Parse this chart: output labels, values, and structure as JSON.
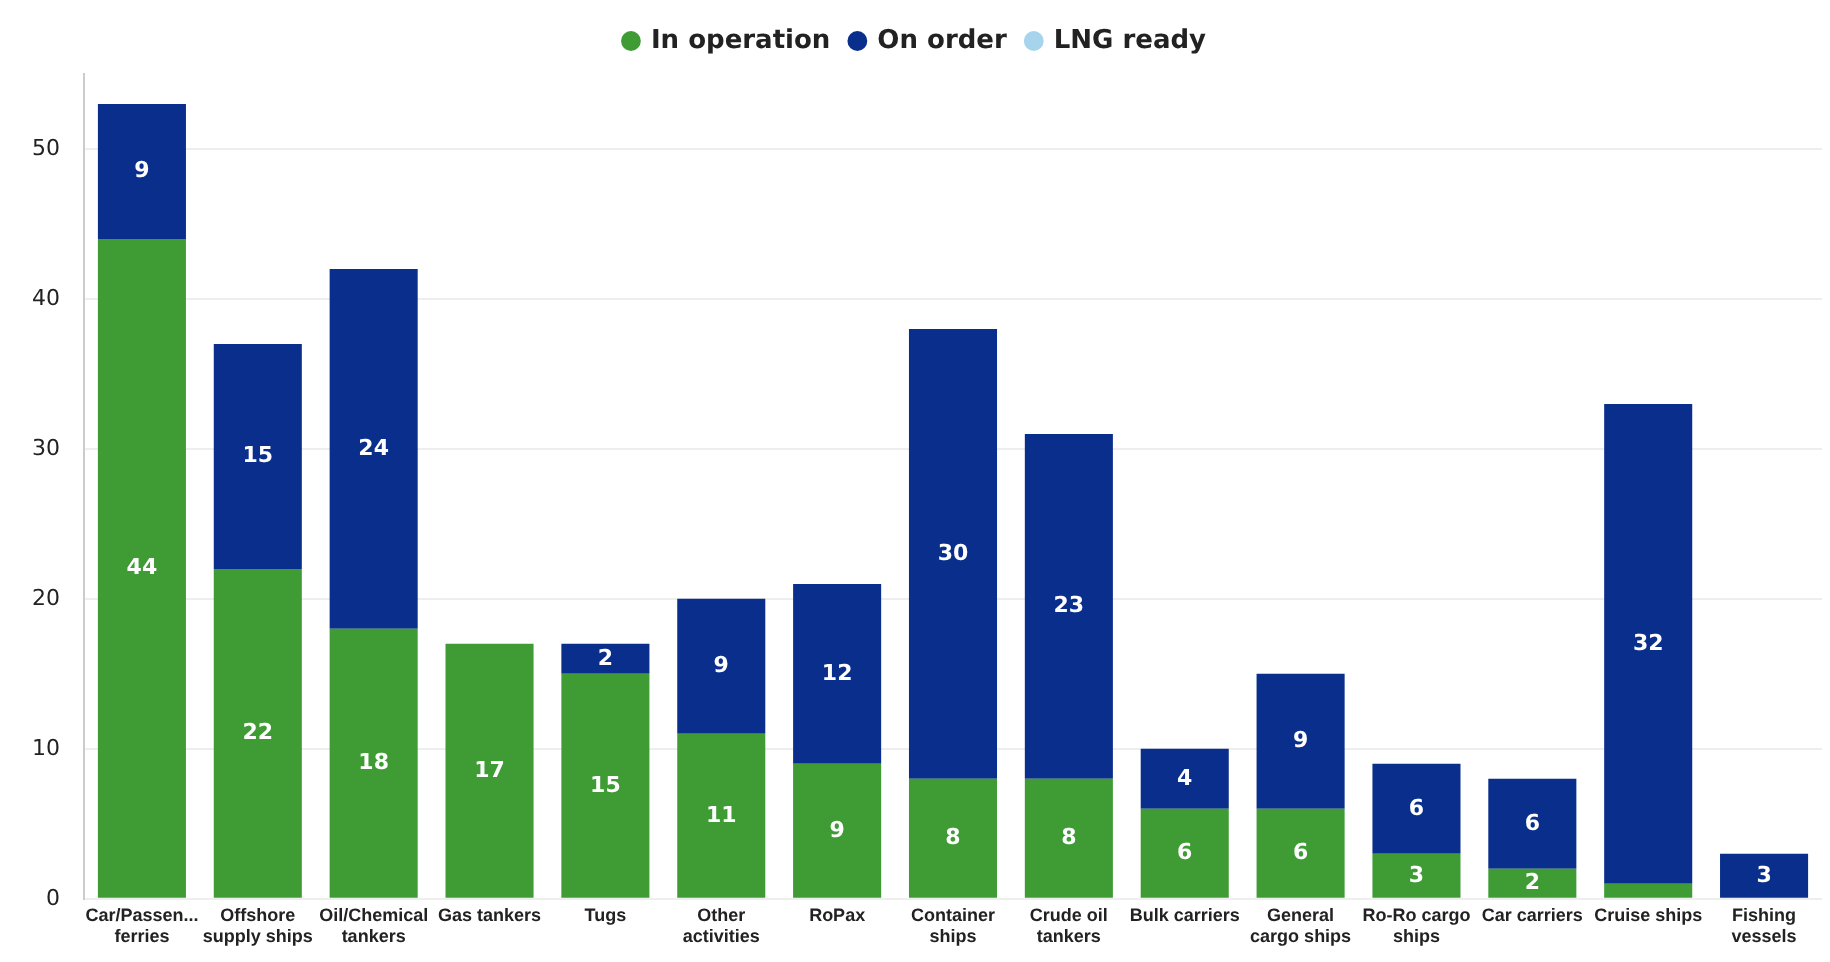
{
  "chart_data": {
    "type": "bar",
    "stacked": true,
    "legend": "top",
    "grid": "y",
    "categories": [
      "Car/Passen...\nferries",
      "Offshore\nsupply ships",
      "Oil/Chemical\ntankers",
      "Gas tankers",
      "Tugs",
      "Other\nactivities",
      "RoPax",
      "Container\nships",
      "Crude oil\ntankers",
      "Bulk carriers",
      "General\ncargo ships",
      "Ro-Ro cargo\nships",
      "Car carriers",
      "Cruise ships",
      "Fishing\nvessels"
    ],
    "series": [
      {
        "name": "In operation",
        "color": "#3f9c35",
        "values": [
          44,
          22,
          18,
          17,
          15,
          11,
          9,
          8,
          8,
          6,
          6,
          3,
          2,
          1,
          0
        ],
        "value_labels": [
          "44",
          "22",
          "18",
          "17",
          "15",
          "11",
          "9",
          "8",
          "8",
          "6",
          "6",
          "3",
          "2",
          null,
          null
        ]
      },
      {
        "name": "On order",
        "color": "#0a2e8c",
        "values": [
          9,
          15,
          24,
          0,
          2,
          9,
          12,
          30,
          23,
          4,
          9,
          6,
          6,
          32,
          3
        ],
        "value_labels": [
          "9",
          "15",
          "24",
          null,
          "2",
          "9",
          "12",
          "30",
          "23",
          "4",
          "9",
          "6",
          "6",
          "32",
          "3"
        ]
      },
      {
        "name": "LNG ready",
        "color": "#a6d4ec",
        "values": [
          0,
          0,
          0,
          0,
          0,
          0,
          0,
          0,
          0,
          0,
          0,
          0,
          0,
          0,
          0
        ]
      }
    ],
    "ylim": [
      0,
      55
    ],
    "yticks": [
      0,
      10,
      20,
      30,
      40,
      50
    ]
  }
}
